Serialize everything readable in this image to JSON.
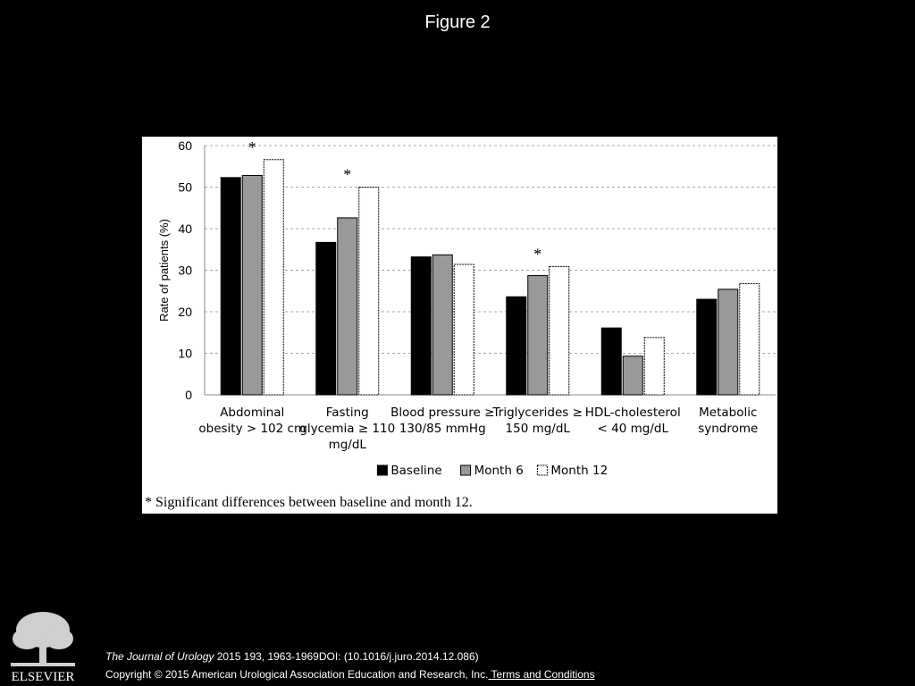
{
  "slide": {
    "title": "Figure 2"
  },
  "chart_data": {
    "type": "bar",
    "title": "",
    "xlabel": "",
    "ylabel": "Rate of patients (%)",
    "ylim": [
      0,
      60
    ],
    "yticks": [
      0,
      10,
      20,
      30,
      40,
      50,
      60
    ],
    "grid": true,
    "legend_position": "bottom",
    "categories": [
      [
        "Abdominal",
        "obesity > 102 cm"
      ],
      [
        "Fasting",
        "glycemia ≥ 110",
        "mg/dL"
      ],
      [
        "Blood pressure ≥",
        "130/85 mmHg"
      ],
      [
        "Triglycerides ≥",
        "150 mg/dL"
      ],
      [
        "HDL-cholesterol",
        "< 40 mg/dL"
      ],
      [
        "Metabolic",
        "syndrome"
      ]
    ],
    "series": [
      {
        "name": "Baseline",
        "color": "#000000",
        "values": [
          52.3,
          36.7,
          33.2,
          23.6,
          16.1,
          23.0
        ]
      },
      {
        "name": "Month 6",
        "color": "#999999",
        "values": [
          52.8,
          42.6,
          33.7,
          28.7,
          9.3,
          25.4
        ]
      },
      {
        "name": "Month 12",
        "color": "#ffffff",
        "values": [
          56.6,
          50.0,
          31.4,
          30.9,
          13.8,
          26.8
        ]
      }
    ],
    "annotations": [
      {
        "category_index": 0,
        "text": "*"
      },
      {
        "category_index": 1,
        "text": "*"
      },
      {
        "category_index": 3,
        "text": "*"
      }
    ],
    "footnote": "* Significant differences between baseline and month 12."
  },
  "logo": {
    "text": "ELSEVIER"
  },
  "citation": {
    "journal": "The Journal of Urology",
    "details": " 2015 193, 1963-1969DOI: (10.1016/j.juro.2014.12.086)"
  },
  "copyright": {
    "text": "Copyright © 2015 American Urological Association Education and Research, Inc.",
    "link_label": " Terms and Conditions"
  }
}
